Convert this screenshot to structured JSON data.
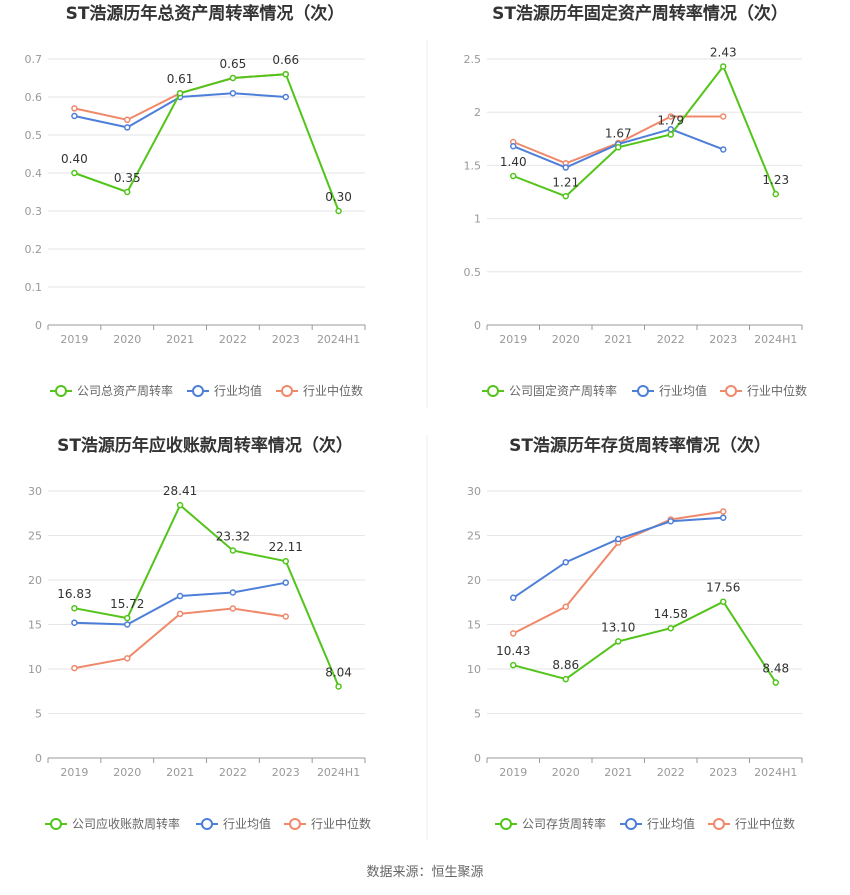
{
  "footer": {
    "source": "数据来源：恒生聚源"
  },
  "colors": {
    "company": "#52c41a",
    "avg": "#4d7fd9",
    "median": "#f0886a"
  },
  "chart_data": [
    {
      "type": "line",
      "title": "ST浩源历年总资产周转率情况（次）",
      "categories": [
        "2019",
        "2020",
        "2021",
        "2022",
        "2023",
        "2024H1"
      ],
      "ylim": [
        0,
        0.7
      ],
      "yticks": [
        "0",
        "0.1",
        "0.2",
        "0.3",
        "0.4",
        "0.5",
        "0.6",
        "0.7"
      ],
      "grid": true,
      "legend": "bottom",
      "series": [
        {
          "name": "公司总资产周转率",
          "values": [
            0.4,
            0.35,
            0.61,
            0.65,
            0.66,
            0.3
          ],
          "labels": [
            "0.40",
            "0.35",
            "0.61",
            "0.65",
            "0.66",
            "0.30"
          ]
        },
        {
          "name": "行业均值",
          "values": [
            0.55,
            0.52,
            0.6,
            0.61,
            0.6,
            null
          ]
        },
        {
          "name": "行业中位数",
          "values": [
            0.57,
            0.54,
            0.61,
            0.65,
            0.66,
            null
          ]
        }
      ]
    },
    {
      "type": "line",
      "title": "ST浩源历年固定资产周转率情况（次）",
      "categories": [
        "2019",
        "2020",
        "2021",
        "2022",
        "2023",
        "2024H1"
      ],
      "ylim": [
        0,
        2.5
      ],
      "yticks": [
        "0",
        "0.5",
        "1",
        "1.5",
        "2",
        "2.5"
      ],
      "grid": true,
      "legend": "bottom",
      "series": [
        {
          "name": "公司固定资产周转率",
          "values": [
            1.4,
            1.21,
            1.67,
            1.79,
            2.43,
            1.23
          ],
          "labels": [
            "1.40",
            "1.21",
            "1.67",
            "1.79",
            "2.43",
            "1.23"
          ]
        },
        {
          "name": "行业均值",
          "values": [
            1.68,
            1.48,
            1.7,
            1.84,
            1.65,
            null
          ]
        },
        {
          "name": "行业中位数",
          "values": [
            1.72,
            1.52,
            1.71,
            1.96,
            1.96,
            null
          ]
        }
      ]
    },
    {
      "type": "line",
      "title": "ST浩源历年应收账款周转率情况（次）",
      "categories": [
        "2019",
        "2020",
        "2021",
        "2022",
        "2023",
        "2024H1"
      ],
      "ylim": [
        0,
        30
      ],
      "yticks": [
        "0",
        "5",
        "10",
        "15",
        "20",
        "25",
        "30"
      ],
      "grid": true,
      "legend": "bottom",
      "series": [
        {
          "name": "公司应收账款周转率",
          "values": [
            16.83,
            15.72,
            28.41,
            23.32,
            22.11,
            8.04
          ],
          "labels": [
            "16.83",
            "15.72",
            "28.41",
            "23.32",
            "22.11",
            "8.04"
          ]
        },
        {
          "name": "行业均值",
          "values": [
            15.2,
            15.0,
            18.2,
            18.6,
            19.7,
            null
          ]
        },
        {
          "name": "行业中位数",
          "values": [
            10.1,
            11.2,
            16.2,
            16.8,
            15.9,
            null
          ]
        }
      ]
    },
    {
      "type": "line",
      "title": "ST浩源历年存货周转率情况（次）",
      "categories": [
        "2019",
        "2020",
        "2021",
        "2022",
        "2023",
        "2024H1"
      ],
      "ylim": [
        0,
        30
      ],
      "yticks": [
        "0",
        "5",
        "10",
        "15",
        "20",
        "25",
        "30"
      ],
      "grid": true,
      "legend": "bottom",
      "series": [
        {
          "name": "公司存货周转率",
          "values": [
            10.43,
            8.86,
            13.1,
            14.58,
            17.56,
            8.48
          ],
          "labels": [
            "10.43",
            "8.86",
            "13.10",
            "14.58",
            "17.56",
            "8.48"
          ]
        },
        {
          "name": "行业均值",
          "values": [
            18.0,
            22.0,
            24.6,
            26.6,
            27.0,
            null
          ]
        },
        {
          "name": "行业中位数",
          "values": [
            14.0,
            17.0,
            24.2,
            26.8,
            27.7,
            null
          ]
        }
      ]
    }
  ]
}
